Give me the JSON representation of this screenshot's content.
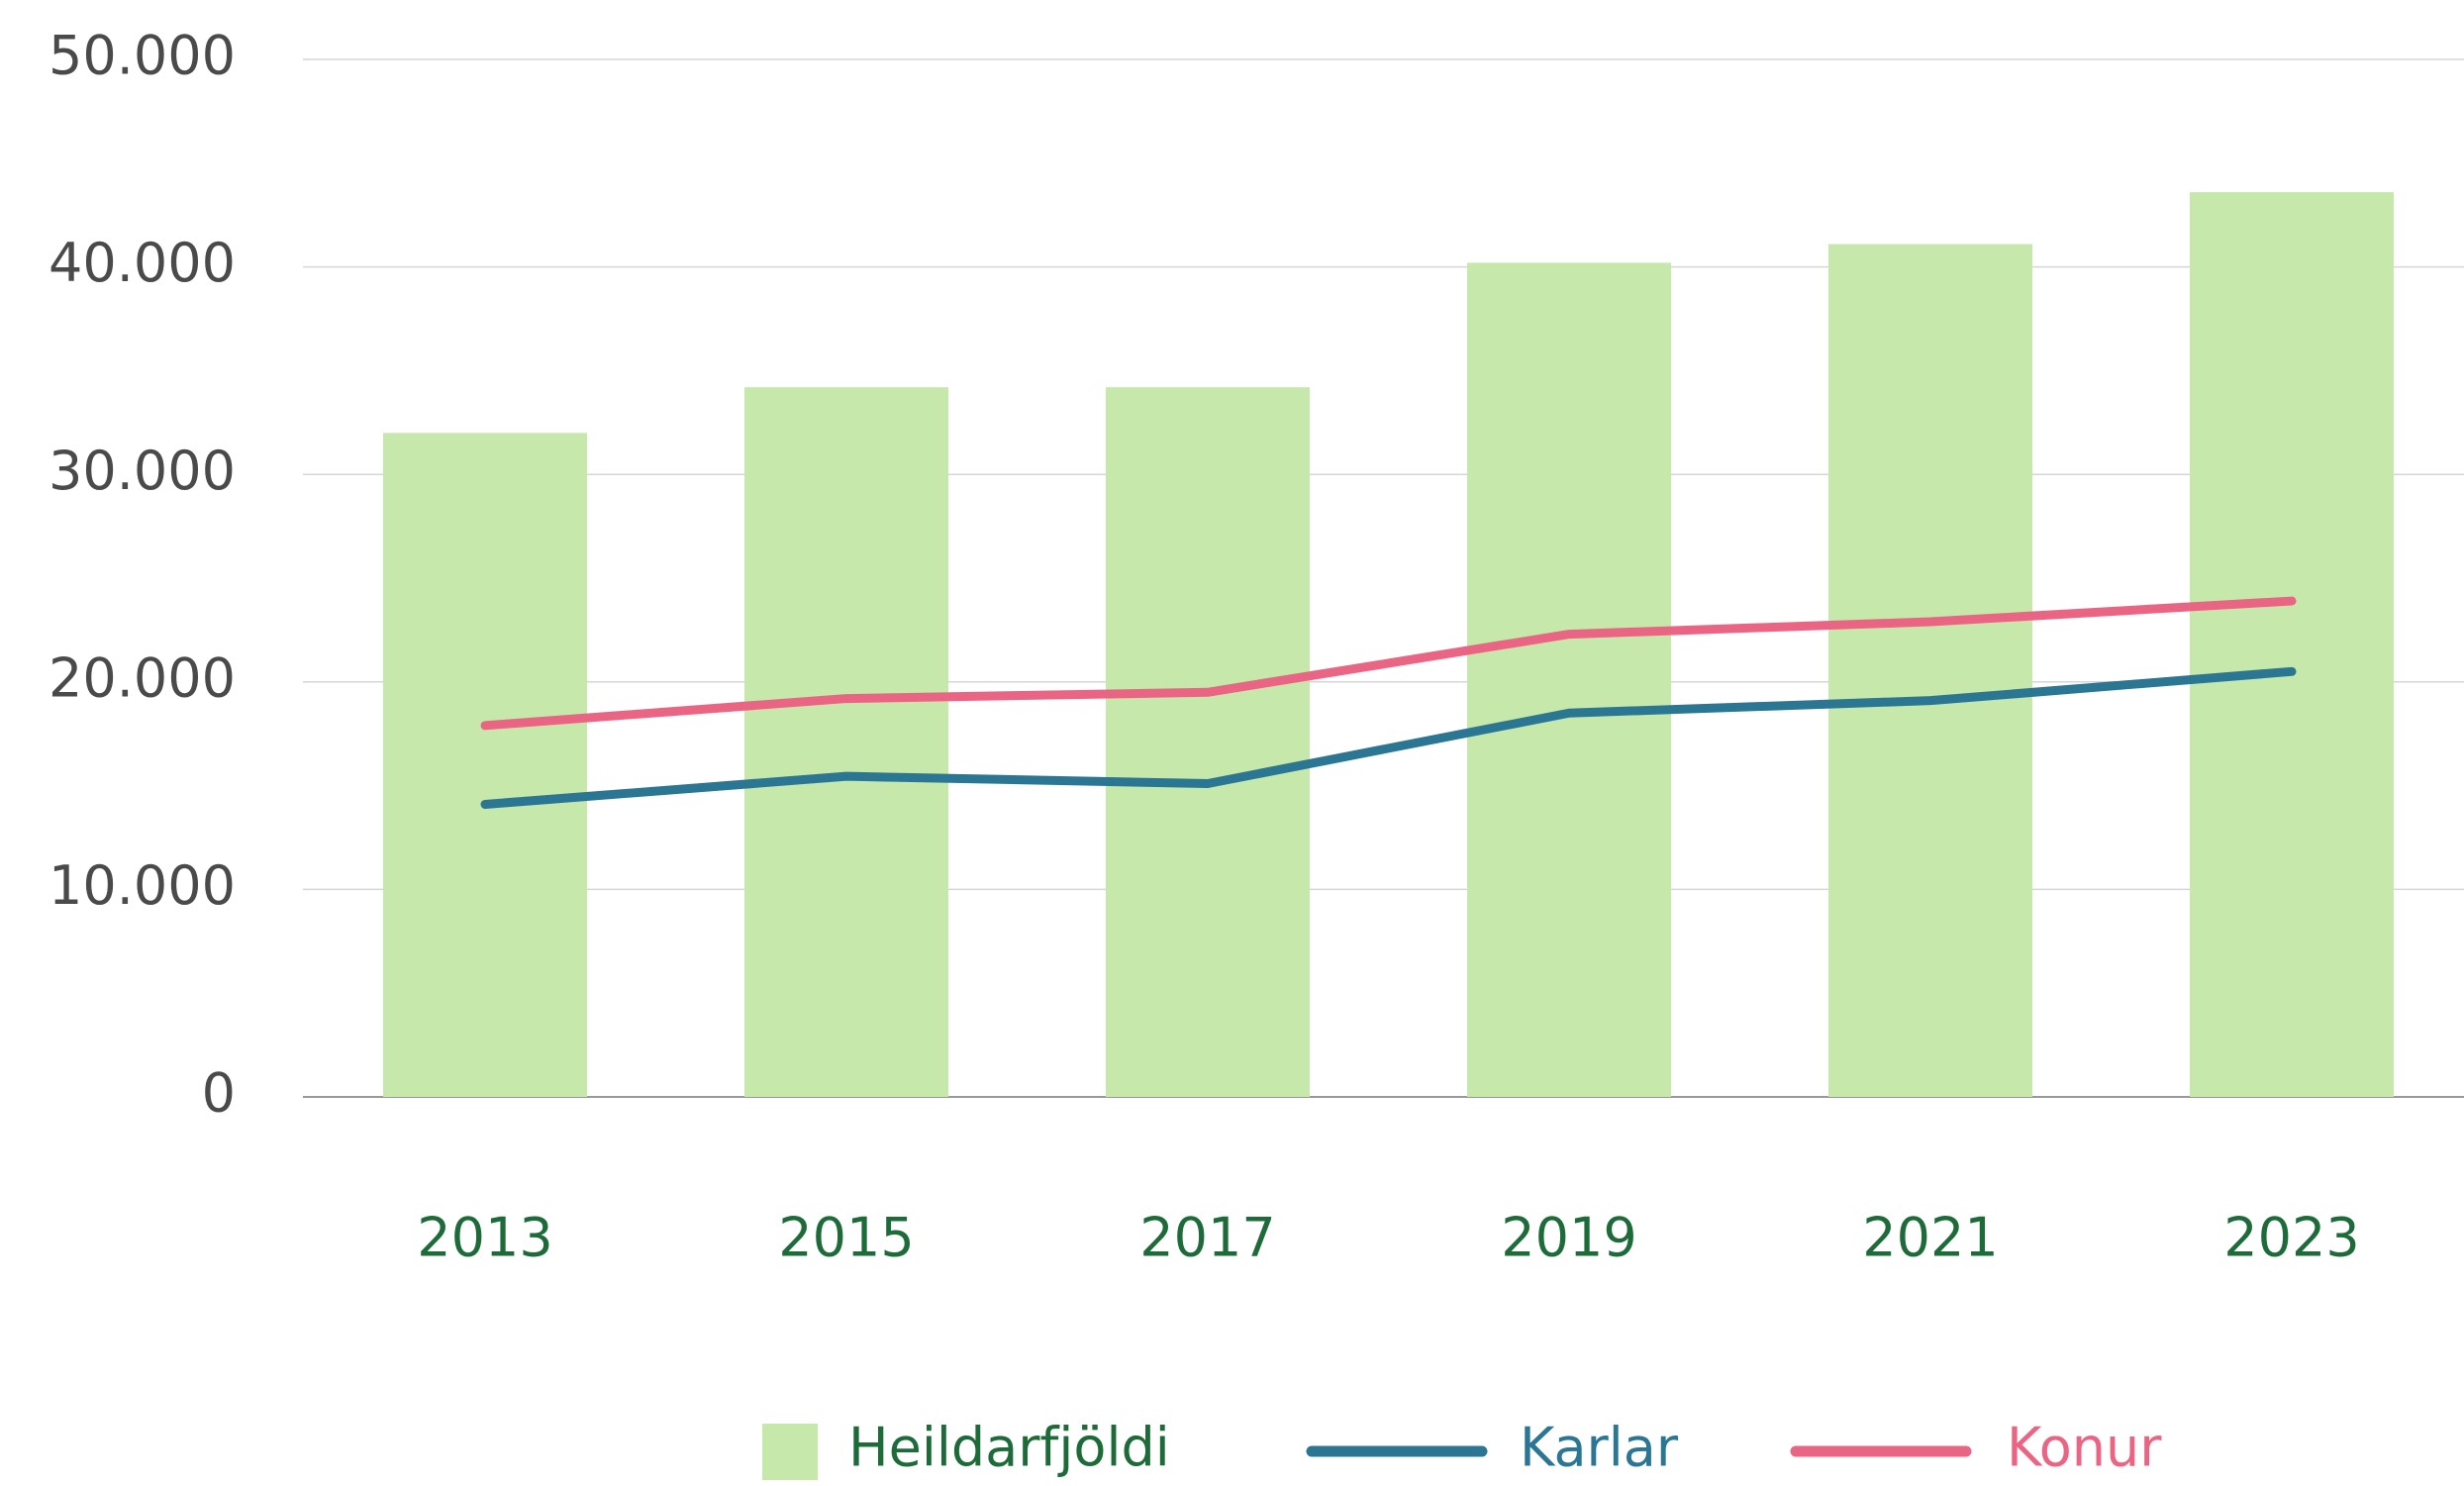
{
  "chart_data": {
    "type": "bar",
    "categories": [
      "2013",
      "2015",
      "2017",
      "2019",
      "2021",
      "2023"
    ],
    "series": [
      {
        "name": "Heildarfjöldi",
        "type": "bar",
        "color": "#c6e8ab",
        "values": [
          32000,
          34200,
          34200,
          40200,
          41100,
          43600
        ]
      },
      {
        "name": "Karlar",
        "type": "line",
        "color": "#2a7693",
        "values": [
          14100,
          15450,
          15100,
          18500,
          19100,
          20500
        ]
      },
      {
        "name": "Konur",
        "type": "line",
        "color": "#ea6583",
        "values": [
          17900,
          19200,
          19500,
          22300,
          22900,
          23900
        ]
      }
    ],
    "ylim": [
      0,
      50000
    ],
    "yticks": [
      0,
      {
        "value": 10000,
        "label": "10.000"
      },
      {
        "value": 20000,
        "label": "20.000"
      },
      {
        "value": 30000,
        "label": "30.000"
      },
      {
        "value": 40000,
        "label": "40.000"
      },
      {
        "value": 50000,
        "label": "50.000"
      }
    ],
    "grid": true,
    "legend": "bottom"
  }
}
